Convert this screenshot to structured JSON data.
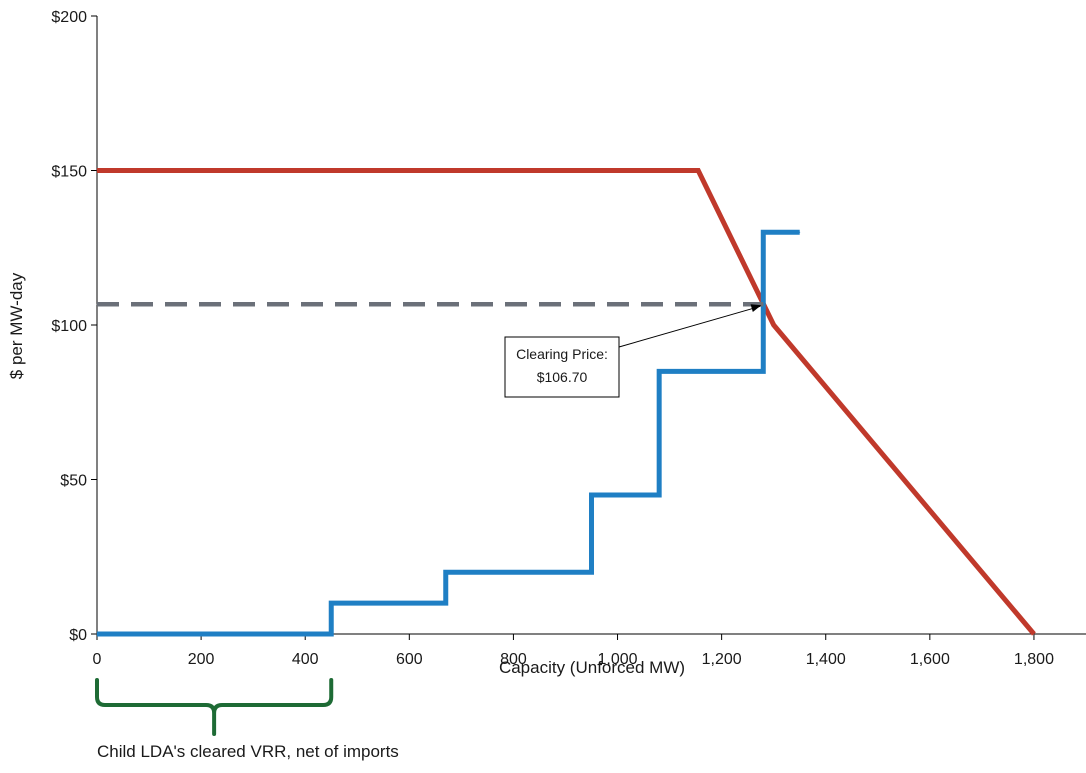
{
  "chart_data": {
    "type": "line",
    "xlabel": "Capacity (Unforced MW)",
    "ylabel": "$ per MW-day",
    "xlim": [
      0,
      1900
    ],
    "ylim": [
      0,
      200
    ],
    "x_ticks": [
      0,
      200,
      400,
      600,
      800,
      1000,
      1200,
      1400,
      1600,
      1800
    ],
    "x_tick_labels": [
      "0",
      "200",
      "400",
      "600",
      "800",
      "1,000",
      "1,200",
      "1,400",
      "1,600",
      "1,800"
    ],
    "y_ticks": [
      0,
      50,
      100,
      150,
      200
    ],
    "y_tick_labels": [
      "$0",
      "$50",
      "$100",
      "$150",
      "$200"
    ],
    "grid": false,
    "series": [
      {
        "role": "demand",
        "color": "#c0392b",
        "style": "solid",
        "points": [
          [
            0,
            150
          ],
          [
            1155,
            150
          ],
          [
            1300,
            100
          ],
          [
            1800,
            0
          ]
        ]
      },
      {
        "role": "supply",
        "color": "#1f7fc4",
        "style": "solid-step",
        "points": [
          [
            0,
            0
          ],
          [
            450,
            0
          ],
          [
            450,
            10
          ],
          [
            670,
            10
          ],
          [
            670,
            20
          ],
          [
            950,
            20
          ],
          [
            950,
            45
          ],
          [
            1080,
            45
          ],
          [
            1080,
            85
          ],
          [
            1280,
            85
          ],
          [
            1280,
            130
          ],
          [
            1350,
            130
          ]
        ]
      },
      {
        "role": "clearing-price-line",
        "color": "#6b7079",
        "style": "dashed",
        "points": [
          [
            0,
            106.7
          ],
          [
            1280,
            106.7
          ]
        ]
      }
    ],
    "annotations": {
      "clearing_price": {
        "lines": [
          "Clearing Price:",
          "$106.70"
        ],
        "point": [
          1280,
          106.7
        ]
      },
      "brace": {
        "range": [
          0,
          450
        ],
        "color": "#1e6b35",
        "label": "Child LDA's cleared VRR, net of imports"
      }
    }
  }
}
